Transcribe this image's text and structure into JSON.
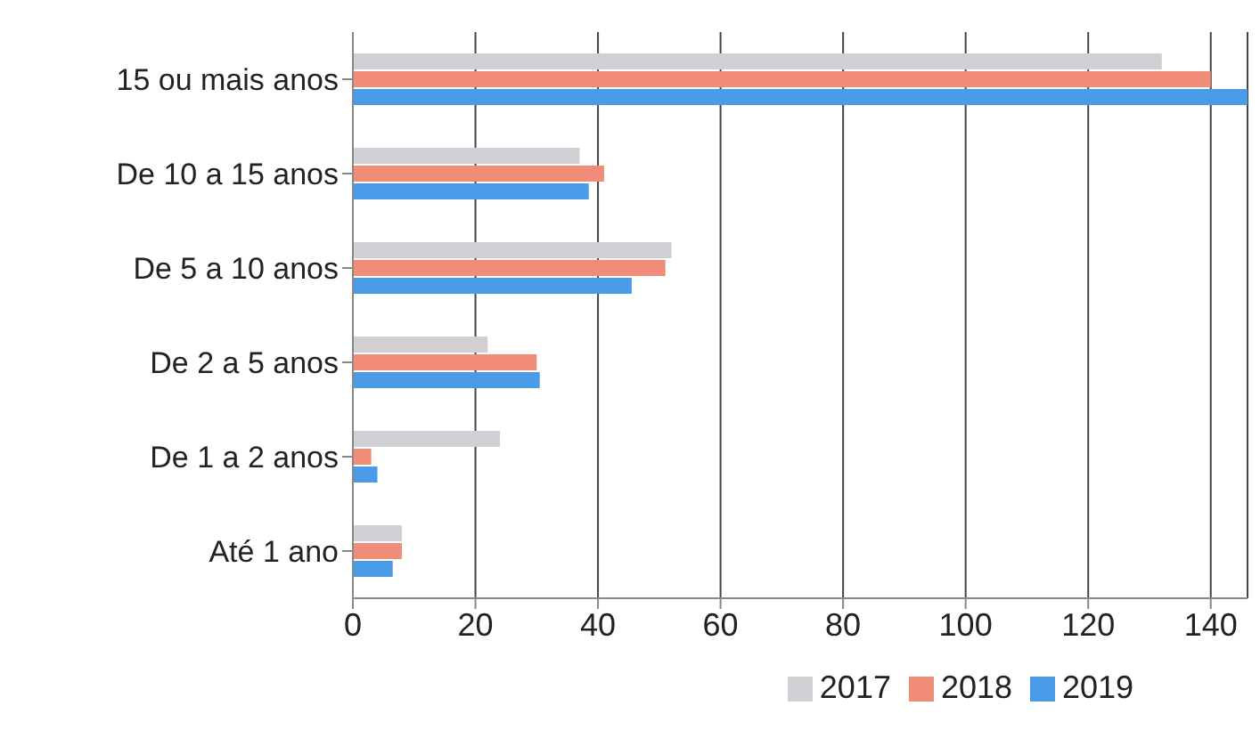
{
  "chart_data": {
    "type": "bar",
    "orientation": "horizontal",
    "categories": [
      "15 ou mais anos",
      "De 10 a 15 anos",
      "De 5 a 10 anos",
      "De 2 a 5 anos",
      "De 1 a 2 anos",
      "Até 1 ano"
    ],
    "series": [
      {
        "name": "2017",
        "color": "#d0d0d4",
        "values": [
          132,
          37,
          52,
          22,
          24,
          8
        ]
      },
      {
        "name": "2018",
        "color": "#f08c78",
        "values": [
          140,
          41,
          51,
          30,
          3,
          8
        ]
      },
      {
        "name": "2019",
        "color": "#4a9be8",
        "values": [
          146,
          38.5,
          45.5,
          30.5,
          4,
          6.5
        ]
      }
    ],
    "xlim": [
      0,
      146
    ],
    "xticks": [
      0,
      20,
      40,
      60,
      80,
      100,
      120,
      140
    ],
    "grid": "x",
    "legend": "bottom"
  }
}
